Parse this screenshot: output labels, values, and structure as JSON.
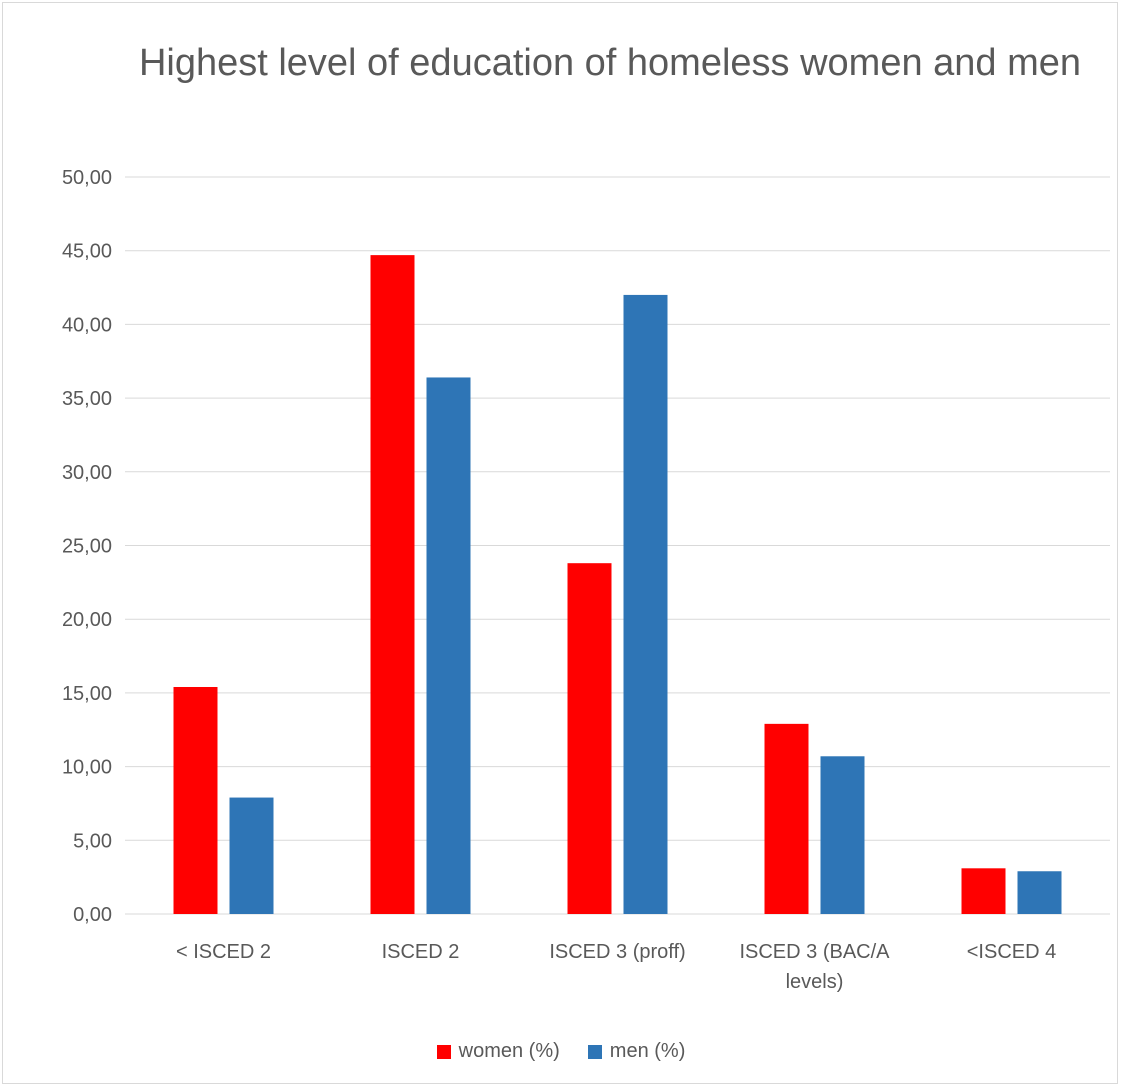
{
  "chart_data": {
    "type": "bar",
    "title": "Highest level of education of homeless women and men",
    "categories": [
      "< ISCED 2",
      "ISCED 2",
      "ISCED 3 (proff)",
      "ISCED 3 (BAC/A levels)",
      "<ISCED 4"
    ],
    "series": [
      {
        "name": "women (%)",
        "color": "#ff0000",
        "values": [
          15.4,
          44.7,
          23.8,
          12.9,
          3.1
        ]
      },
      {
        "name": "men (%)",
        "color": "#2e75b6",
        "values": [
          7.9,
          36.4,
          42.0,
          10.7,
          2.9
        ]
      }
    ],
    "y_ticks": [
      "0,00",
      "5,00",
      "10,00",
      "15,00",
      "20,00",
      "25,00",
      "30,00",
      "35,00",
      "40,00",
      "45,00",
      "50,00"
    ],
    "ylim": [
      0,
      50
    ],
    "grid": true,
    "legend_position": "bottom",
    "xlabel": "",
    "ylabel": ""
  }
}
